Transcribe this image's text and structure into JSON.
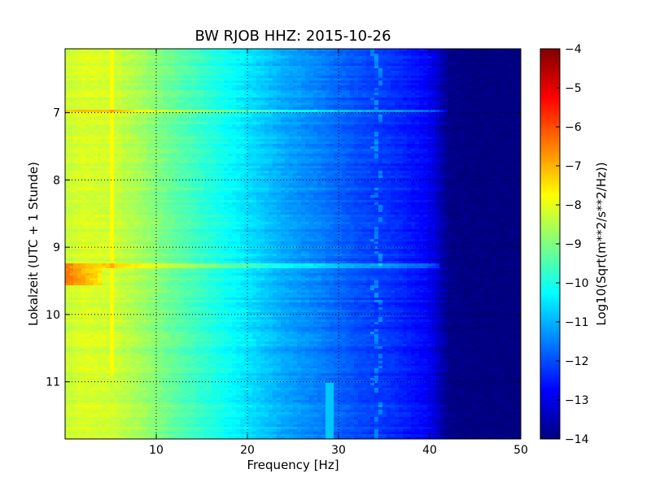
{
  "chart_data": {
    "type": "heatmap",
    "title": "BW RJOB HHZ: 2015-10-26",
    "xlabel": "Frequency [Hz]",
    "ylabel": "Lokalzeit (UTC + 1 Stunde)",
    "xlim": [
      0,
      50
    ],
    "ylim": [
      11.85,
      6.05
    ],
    "y_inverted": true,
    "x_ticks": [
      10,
      20,
      30,
      40,
      50
    ],
    "x_tick_labels": [
      "10",
      "20",
      "30",
      "40",
      "50"
    ],
    "y_ticks": [
      7,
      8,
      9,
      10,
      11
    ],
    "y_tick_labels": [
      "7",
      "8",
      "9",
      "10",
      "11"
    ],
    "grid": true,
    "colormap": "jet",
    "colorbar": {
      "label": "Log10(Sqrt(m**2/s**2/Hz))",
      "range": [
        -14,
        -4
      ],
      "ticks": [
        -4,
        -5,
        -6,
        -7,
        -8,
        -9,
        -10,
        -11,
        -12,
        -13,
        -14
      ],
      "tick_labels": [
        "−4",
        "−5",
        "−6",
        "−7",
        "−8",
        "−9",
        "−10",
        "−11",
        "−12",
        "−13",
        "−14"
      ]
    },
    "spectrum_profile": {
      "frequency_hz": [
        0,
        2,
        5,
        8,
        12,
        16,
        20,
        24,
        28,
        32,
        36,
        40,
        42,
        45,
        50
      ],
      "log_psd": [
        -8.3,
        -8.1,
        -8.2,
        -8.6,
        -9.3,
        -9.9,
        -10.5,
        -11.1,
        -11.5,
        -12.0,
        -12.3,
        -12.8,
        -13.9,
        -14.0,
        -14.0
      ]
    },
    "features": [
      {
        "type": "narrowband_line",
        "frequency_hz": 5,
        "time_range": [
          6.0,
          10.9
        ],
        "log_psd": -7.8
      },
      {
        "type": "broadband_stripe",
        "time": 6.97,
        "freq_range": [
          0,
          42
        ],
        "boost": 1.1
      },
      {
        "type": "broadband_stripe",
        "time": 9.27,
        "freq_range": [
          0,
          41
        ],
        "boost": 0.9
      },
      {
        "type": "high_energy_patch",
        "time_range": [
          9.25,
          9.55
        ],
        "freq_range": [
          0,
          4
        ],
        "log_psd": -6.2
      },
      {
        "type": "wandering_line",
        "frequency_hz": 34.3,
        "time_range": [
          6.0,
          11.85
        ]
      },
      {
        "type": "narrowband_line",
        "frequency_hz": 29,
        "time_range": [
          11.0,
          11.85
        ],
        "log_psd": -10.8
      }
    ],
    "colors": {
      "jet": [
        "#00007f",
        "#0000ff",
        "#007fff",
        "#00ffff",
        "#7fff7f",
        "#ffff00",
        "#ff7f00",
        "#ff0000",
        "#7f0000"
      ]
    }
  }
}
